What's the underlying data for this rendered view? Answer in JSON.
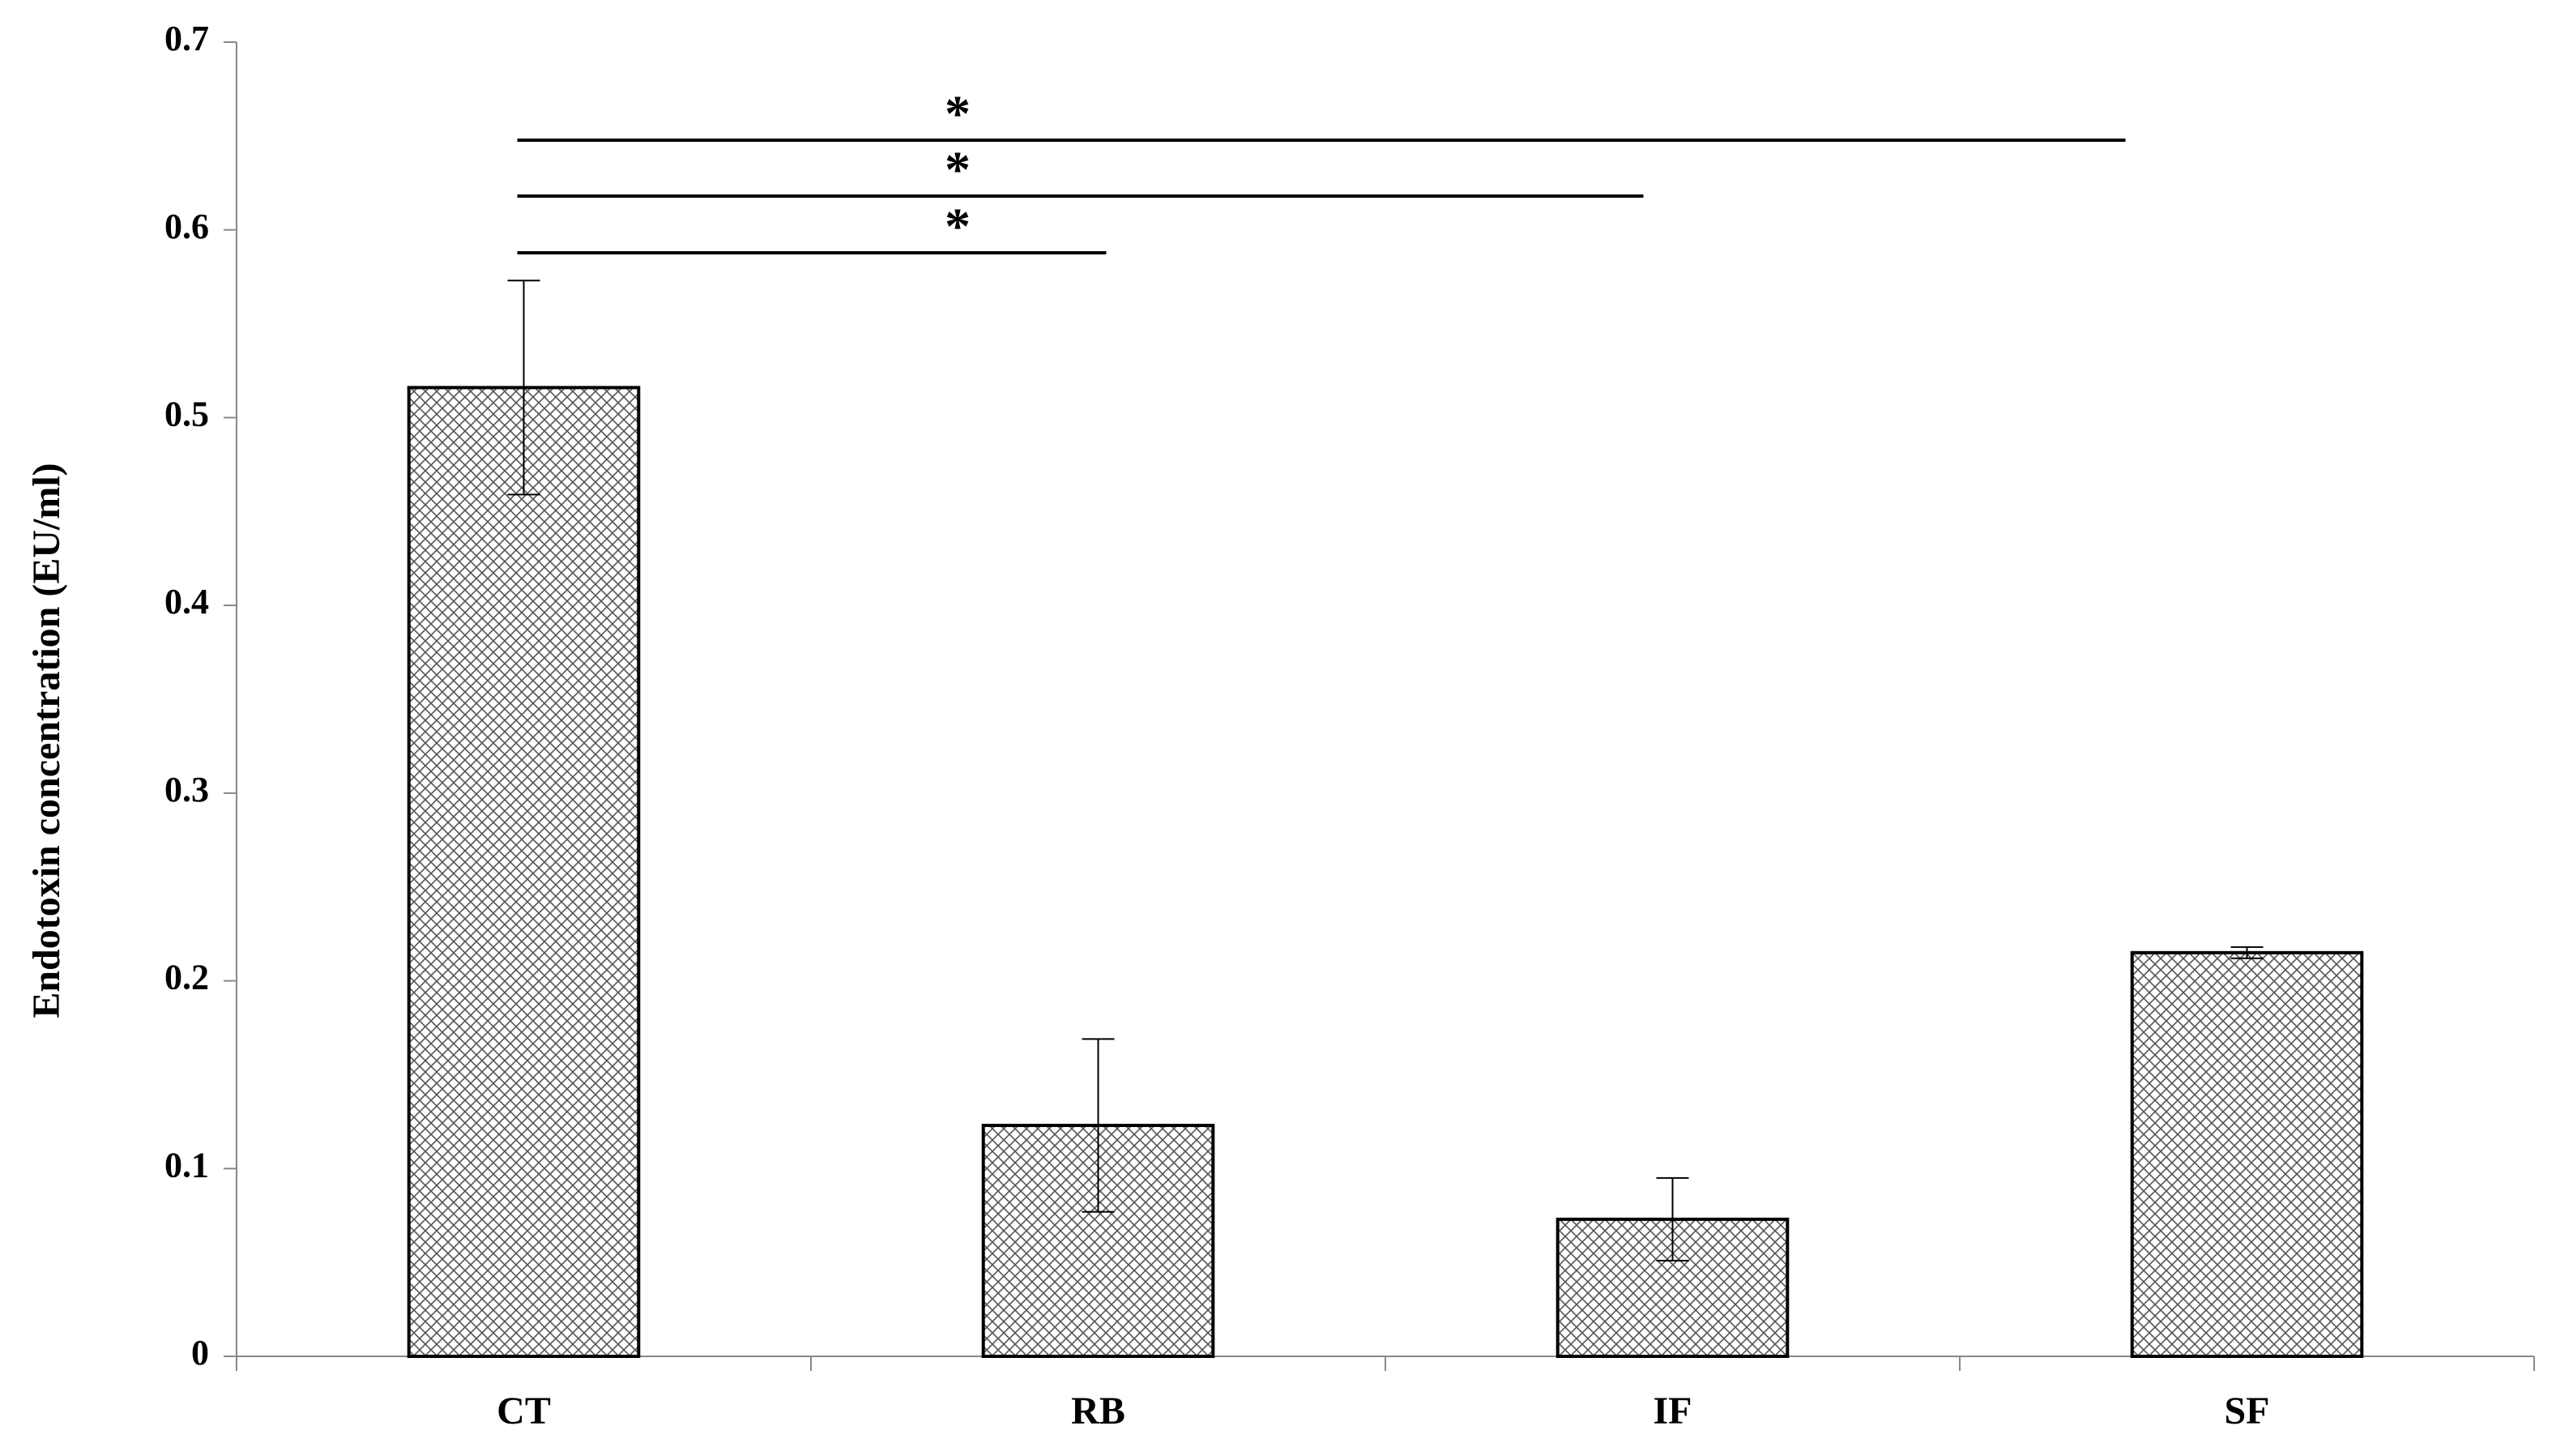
{
  "chart_data": {
    "type": "bar",
    "y_label": "Endotoxin concentration (EU/ml)",
    "categories": [
      "CT",
      "RB",
      "IF",
      "SF"
    ],
    "values": [
      0.516,
      0.123,
      0.073,
      0.215
    ],
    "errors": [
      0.057,
      0.046,
      0.022,
      0.003
    ],
    "color": "#000000",
    "ylim": [
      0,
      0.7
    ],
    "yticks": [
      0,
      0.1,
      0.2,
      0.3,
      0.4,
      0.5,
      0.6,
      0.7
    ],
    "annotations": [
      "*",
      "*",
      "*"
    ],
    "grid": false
  }
}
